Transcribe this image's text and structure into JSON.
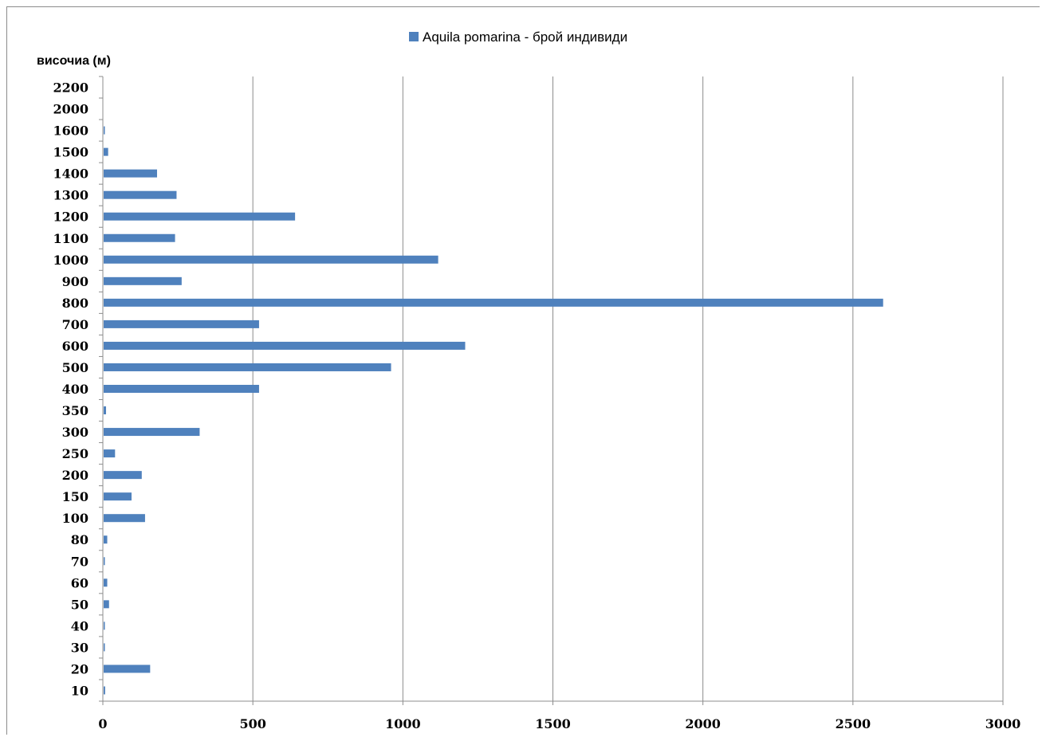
{
  "chart_data": {
    "type": "bar",
    "orientation": "horizontal",
    "title": "",
    "ylabel": "височиа (м)",
    "xlabel": "",
    "legend": {
      "position": "top",
      "entries": [
        "Aquila pomarina - брой индивиди"
      ]
    },
    "categories": [
      "10",
      "20",
      "30",
      "40",
      "50",
      "60",
      "70",
      "80",
      "100",
      "150",
      "200",
      "250",
      "300",
      "350",
      "400",
      "500",
      "600",
      "700",
      "800",
      "900",
      "1000",
      "1100",
      "1200",
      "1300",
      "1400",
      "1500",
      "1600",
      "2000",
      "2200"
    ],
    "series": [
      {
        "name": "Aquila pomarina - брой индивиди",
        "color": "#4f81bd",
        "values": [
          5,
          155,
          4,
          4,
          18,
          12,
          4,
          12,
          138,
          93,
          127,
          38,
          320,
          8,
          518,
          958,
          1205,
          518,
          2598,
          260,
          1115,
          238,
          638,
          243,
          178,
          15,
          4,
          0,
          0
        ]
      }
    ],
    "xlim": [
      0,
      3000
    ],
    "xticks": [
      "0",
      "500",
      "1000",
      "1500",
      "2000",
      "2500",
      "3000"
    ],
    "grid": "vertical"
  }
}
